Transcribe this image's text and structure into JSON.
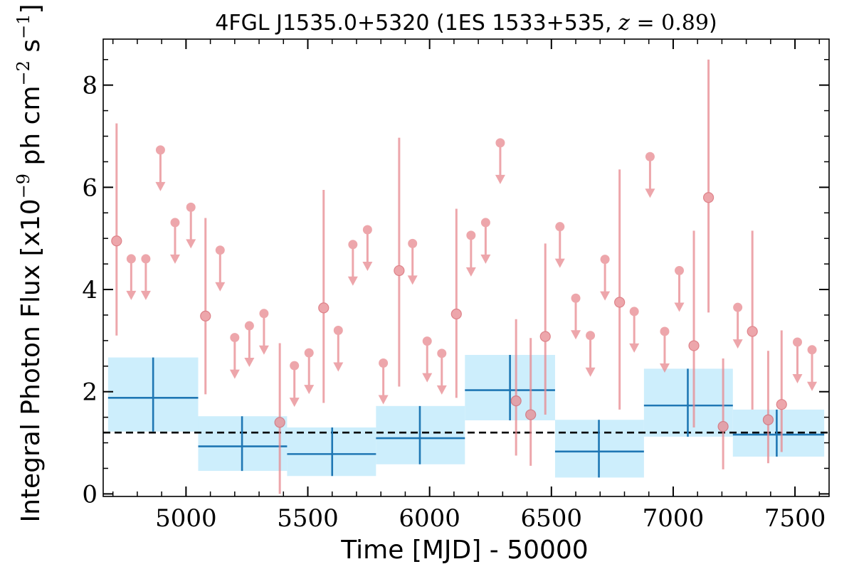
{
  "chart_data": {
    "type": "scatter",
    "title": {
      "source": "4FGL J1535.0+5320",
      "association": "1ES 1533+535,",
      "z_symbol": "z",
      "z_value": "= 0.89"
    },
    "xlabel": "Time [MJD] - 50000",
    "ylabel": {
      "prefix": "Integral Photon Flux [x10",
      "exp1": "−9",
      "middle": " ph cm",
      "exp2": "−2",
      "middle2": " s",
      "exp3": "−1",
      "suffix": "]"
    },
    "xlim": [
      4660,
      7640
    ],
    "ylim": [
      -0.05,
      8.9
    ],
    "x_ticks": [
      5000,
      5500,
      6000,
      6500,
      7000,
      7500
    ],
    "y_ticks": [
      0,
      2,
      4,
      6,
      8
    ],
    "grid": false,
    "mean_flux": 1.2,
    "colors": {
      "points": "#e8898f",
      "bins_fill": "#cdeefc",
      "bins_line": "#1f77b4",
      "mean_line": "#000000"
    },
    "detections": [
      {
        "x": 4715,
        "y": 4.95,
        "lo": 3.1,
        "hi": 7.25
      },
      {
        "x": 5080,
        "y": 3.48,
        "lo": 1.95,
        "hi": 5.4
      },
      {
        "x": 5385,
        "y": 1.4,
        "lo": 0.0,
        "hi": 2.95
      },
      {
        "x": 5565,
        "y": 3.64,
        "lo": 1.78,
        "hi": 5.95
      },
      {
        "x": 5875,
        "y": 4.37,
        "lo": 2.1,
        "hi": 6.97
      },
      {
        "x": 6110,
        "y": 3.52,
        "lo": 1.88,
        "hi": 5.58
      },
      {
        "x": 6355,
        "y": 1.82,
        "lo": 0.75,
        "hi": 3.42
      },
      {
        "x": 6415,
        "y": 1.55,
        "lo": 0.55,
        "hi": 3.05
      },
      {
        "x": 6475,
        "y": 3.08,
        "lo": 1.55,
        "hi": 4.9
      },
      {
        "x": 6780,
        "y": 3.75,
        "lo": 1.65,
        "hi": 6.35
      },
      {
        "x": 7085,
        "y": 2.9,
        "lo": 1.3,
        "hi": 5.15
      },
      {
        "x": 7145,
        "y": 5.8,
        "lo": 3.55,
        "hi": 8.5
      },
      {
        "x": 7205,
        "y": 1.32,
        "lo": 0.48,
        "hi": 2.65
      },
      {
        "x": 7325,
        "y": 3.18,
        "lo": 1.65,
        "hi": 5.15
      },
      {
        "x": 7390,
        "y": 1.45,
        "lo": 0.6,
        "hi": 2.8
      },
      {
        "x": 7445,
        "y": 1.75,
        "lo": 0.82,
        "hi": 3.2
      }
    ],
    "upper_limits": [
      {
        "x": 4775,
        "y": 4.6
      },
      {
        "x": 4835,
        "y": 4.6
      },
      {
        "x": 4895,
        "y": 6.73
      },
      {
        "x": 4955,
        "y": 5.31
      },
      {
        "x": 5020,
        "y": 5.61
      },
      {
        "x": 5140,
        "y": 4.77
      },
      {
        "x": 5200,
        "y": 3.06
      },
      {
        "x": 5260,
        "y": 3.29
      },
      {
        "x": 5320,
        "y": 3.53
      },
      {
        "x": 5445,
        "y": 2.51
      },
      {
        "x": 5505,
        "y": 2.76
      },
      {
        "x": 5625,
        "y": 3.2
      },
      {
        "x": 5685,
        "y": 4.88
      },
      {
        "x": 5745,
        "y": 5.17
      },
      {
        "x": 5810,
        "y": 2.56
      },
      {
        "x": 5930,
        "y": 4.9
      },
      {
        "x": 5990,
        "y": 2.99
      },
      {
        "x": 6050,
        "y": 2.75
      },
      {
        "x": 6170,
        "y": 5.06
      },
      {
        "x": 6230,
        "y": 5.31
      },
      {
        "x": 6290,
        "y": 6.87
      },
      {
        "x": 6535,
        "y": 5.23
      },
      {
        "x": 6600,
        "y": 3.83
      },
      {
        "x": 6660,
        "y": 3.1
      },
      {
        "x": 6720,
        "y": 4.59
      },
      {
        "x": 6840,
        "y": 3.57
      },
      {
        "x": 6905,
        "y": 6.6
      },
      {
        "x": 6965,
        "y": 3.18
      },
      {
        "x": 7025,
        "y": 4.37
      },
      {
        "x": 7265,
        "y": 3.65
      },
      {
        "x": 7510,
        "y": 2.97
      },
      {
        "x": 7570,
        "y": 2.82
      }
    ],
    "bins": [
      {
        "x": 4865,
        "x0": 4680,
        "x1": 5050,
        "y": 1.88,
        "lo": 1.22,
        "hi": 2.67
      },
      {
        "x": 5230,
        "x0": 5050,
        "x1": 5415,
        "y": 0.93,
        "lo": 0.45,
        "hi": 1.52
      },
      {
        "x": 5600,
        "x0": 5415,
        "x1": 5780,
        "y": 0.78,
        "lo": 0.35,
        "hi": 1.3
      },
      {
        "x": 5960,
        "x0": 5780,
        "x1": 6145,
        "y": 1.09,
        "lo": 0.58,
        "hi": 1.72
      },
      {
        "x": 6330,
        "x0": 6145,
        "x1": 6515,
        "y": 2.03,
        "lo": 1.44,
        "hi": 2.72
      },
      {
        "x": 6695,
        "x0": 6515,
        "x1": 6880,
        "y": 0.83,
        "lo": 0.32,
        "hi": 1.45
      },
      {
        "x": 7060,
        "x0": 6880,
        "x1": 7245,
        "y": 1.73,
        "lo": 1.12,
        "hi": 2.45
      },
      {
        "x": 7425,
        "x0": 7245,
        "x1": 7620,
        "y": 1.16,
        "lo": 0.73,
        "hi": 1.65
      }
    ]
  }
}
